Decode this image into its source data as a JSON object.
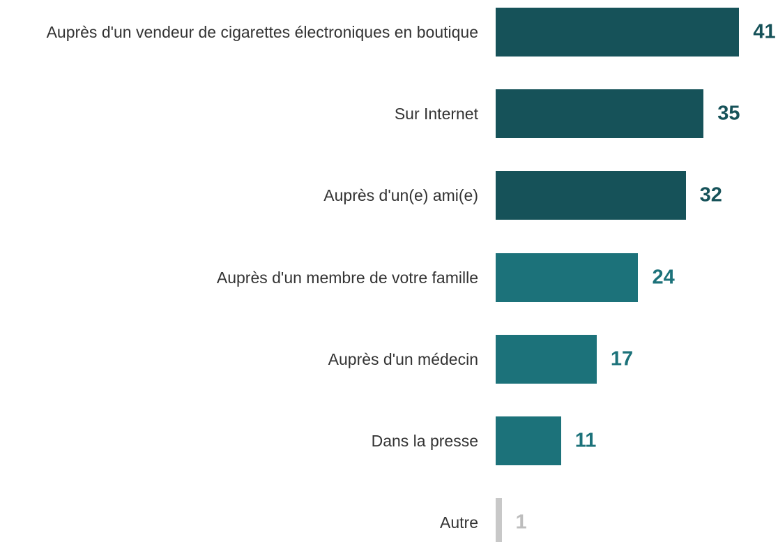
{
  "chart_data": {
    "type": "bar",
    "orientation": "horizontal",
    "categories": [
      "Auprès d'un vendeur de cigarettes électroniques en boutique",
      "Sur Internet",
      "Auprès d'un(e) ami(e)",
      "Auprès d'un membre de votre famille",
      "Auprès d'un médecin",
      "Dans la presse",
      "Autre"
    ],
    "values": [
      41,
      35,
      32,
      24,
      17,
      11,
      1
    ],
    "colors": [
      "#165259",
      "#165259",
      "#165259",
      "#1c727a",
      "#1c727a",
      "#1c727a",
      "#c8c8c8"
    ],
    "label_colors": [
      "#165259",
      "#165259",
      "#165259",
      "#1c727a",
      "#1c727a",
      "#1c727a",
      "#bdbdbd"
    ]
  }
}
